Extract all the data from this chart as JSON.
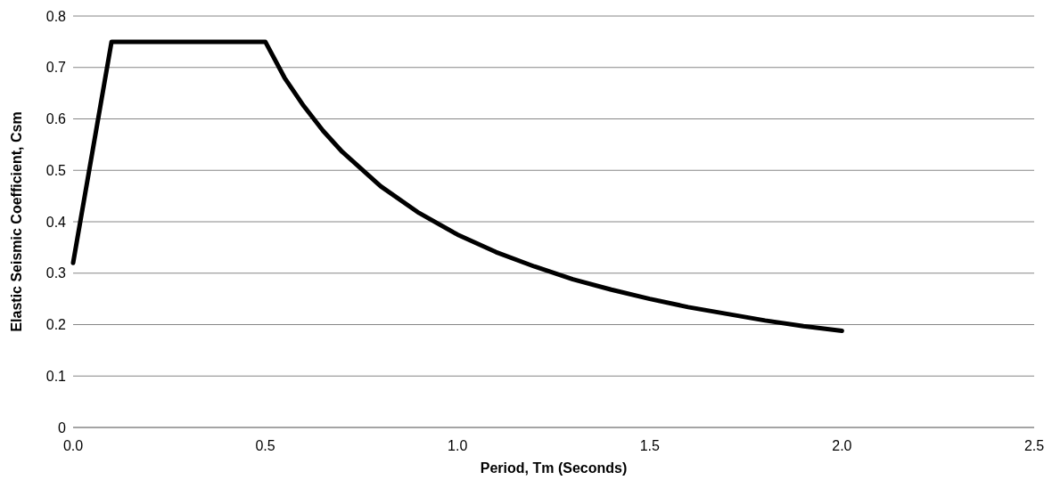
{
  "chart_data": {
    "type": "line",
    "xlabel": "Period, Tm (Seconds)",
    "ylabel": "Elastic Seismic Coefficient, Csm",
    "series": [
      {
        "color": "#000000",
        "x": [
          0,
          0.1,
          0.5,
          0.55,
          0.6,
          0.65,
          0.7,
          0.8,
          0.9,
          1.0,
          1.1,
          1.2,
          1.3,
          1.4,
          1.5,
          1.6,
          1.7,
          1.8,
          1.9,
          2.0
        ],
        "values": [
          0.32,
          0.75,
          0.75,
          0.68,
          0.625,
          0.577,
          0.536,
          0.469,
          0.417,
          0.375,
          0.341,
          0.313,
          0.288,
          0.268,
          0.25,
          0.234,
          0.221,
          0.208,
          0.197,
          0.188
        ]
      }
    ],
    "xlim": [
      0,
      2.5
    ],
    "xticks": [
      {
        "value": 0,
        "label": "0.0"
      },
      {
        "value": 0.5,
        "label": "0.5"
      },
      {
        "value": 1,
        "label": "1.0"
      },
      {
        "value": 1.5,
        "label": "1.5"
      },
      {
        "value": 2,
        "label": "2.0"
      },
      {
        "value": 2.5,
        "label": "2.5"
      }
    ],
    "ylim": [
      0,
      0.8
    ],
    "yticks": [
      0,
      0.1,
      0.2,
      0.3,
      0.4,
      0.5,
      0.6,
      0.7,
      0.8
    ],
    "grid": "y",
    "marker": "none",
    "line_style": "solid"
  }
}
